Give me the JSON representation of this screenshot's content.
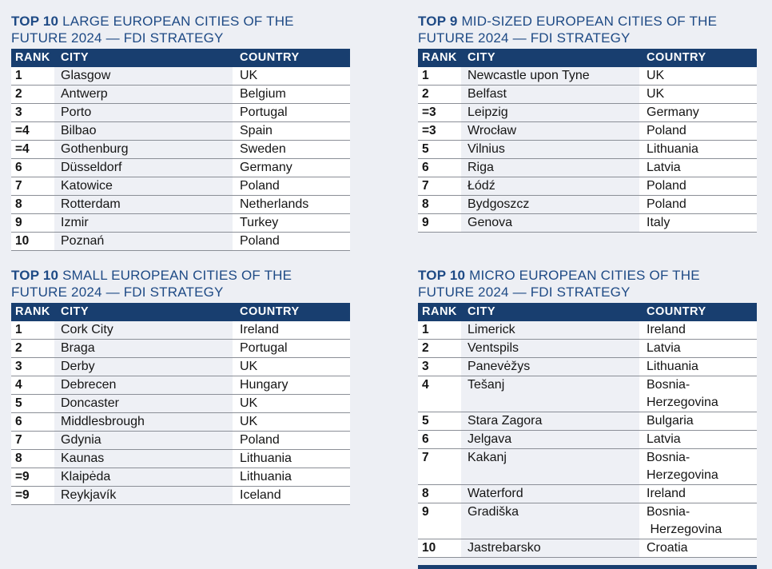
{
  "colors": {
    "page_bg": "#edeff4",
    "navy": "#183e6f",
    "title_blue": "#1e4a85",
    "row_border": "#8b8f97",
    "cell_bg": "#ffffff",
    "city_col_bg": "#eef0f5",
    "body_text": "#151515",
    "header_text": "#ffffff"
  },
  "tables": [
    {
      "id": "large-cities",
      "title_bold": "TOP 10",
      "title_rest": " LARGE EUROPEAN CITIES OF THE FUTURE 2024 — FDI STRATEGY",
      "columns": {
        "rank": "RANK",
        "city": "CITY",
        "country": "COUNTRY"
      },
      "rows": [
        {
          "rank": "1",
          "city": "Glasgow",
          "country": "UK"
        },
        {
          "rank": "2",
          "city": "Antwerp",
          "country": "Belgium"
        },
        {
          "rank": "3",
          "city": "Porto",
          "country": "Portugal"
        },
        {
          "rank": "=4",
          "city": "Bilbao",
          "country": "Spain"
        },
        {
          "rank": "=4",
          "city": "Gothenburg",
          "country": "Sweden"
        },
        {
          "rank": "6",
          "city": "Düsseldorf",
          "country": "Germany"
        },
        {
          "rank": "7",
          "city": "Katowice",
          "country": "Poland"
        },
        {
          "rank": "8",
          "city": "Rotterdam",
          "country": "Netherlands"
        },
        {
          "rank": "9",
          "city": "Izmir",
          "country": "Turkey"
        },
        {
          "rank": "10",
          "city": "Poznań",
          "country": "Poland"
        }
      ]
    },
    {
      "id": "mid-sized-cities",
      "title_bold": "TOP 9",
      "title_rest": " MID-SIZED EUROPEAN CITIES OF THE FUTURE 2024 — FDI STRATEGY",
      "columns": {
        "rank": "RANK",
        "city": "CITY",
        "country": "COUNTRY"
      },
      "rows": [
        {
          "rank": "1",
          "city": "Newcastle upon Tyne",
          "country": "UK"
        },
        {
          "rank": "2",
          "city": "Belfast",
          "country": "UK"
        },
        {
          "rank": "=3",
          "city": "Leipzig",
          "country": "Germany"
        },
        {
          "rank": "=3",
          "city": "Wrocław",
          "country": "Poland"
        },
        {
          "rank": "5",
          "city": "Vilnius",
          "country": "Lithuania"
        },
        {
          "rank": "6",
          "city": "Riga",
          "country": "Latvia"
        },
        {
          "rank": "7",
          "city": "Łódź",
          "country": "Poland"
        },
        {
          "rank": "8",
          "city": "Bydgoszcz",
          "country": "Poland"
        },
        {
          "rank": "9",
          "city": "Genova",
          "country": "Italy"
        }
      ]
    },
    {
      "id": "small-cities",
      "title_bold": "TOP 10",
      "title_rest": " SMALL EUROPEAN CITIES OF THE FUTURE 2024 — FDI STRATEGY",
      "columns": {
        "rank": "RANK",
        "city": "CITY",
        "country": "COUNTRY"
      },
      "rows": [
        {
          "rank": "1",
          "city": "Cork City",
          "country": "Ireland"
        },
        {
          "rank": "2",
          "city": "Braga",
          "country": "Portugal"
        },
        {
          "rank": "3",
          "city": "Derby",
          "country": "UK"
        },
        {
          "rank": "4",
          "city": "Debrecen",
          "country": "Hungary"
        },
        {
          "rank": "5",
          "city": "Doncaster",
          "country": "UK"
        },
        {
          "rank": "6",
          "city": "Middlesbrough",
          "country": "UK"
        },
        {
          "rank": "7",
          "city": "Gdynia",
          "country": "Poland"
        },
        {
          "rank": "8",
          "city": "Kaunas",
          "country": "Lithuania"
        },
        {
          "rank": "=9",
          "city": "Klaipėda",
          "country": "Lithuania"
        },
        {
          "rank": "=9",
          "city": "Reykjavík",
          "country": "Iceland"
        }
      ]
    },
    {
      "id": "micro-cities",
      "title_bold": "TOP 10",
      "title_rest": " MICRO EUROPEAN CITIES OF THE FUTURE 2024 — FDI STRATEGY",
      "columns": {
        "rank": "RANK",
        "city": "CITY",
        "country": "COUNTRY"
      },
      "rows": [
        {
          "rank": "1",
          "city": "Limerick",
          "country": "Ireland"
        },
        {
          "rank": "2",
          "city": "Ventspils",
          "country": "Latvia"
        },
        {
          "rank": "3",
          "city": "Panevėžys",
          "country": "Lithuania"
        },
        {
          "rank": "4",
          "city": "Tešanj",
          "country": "Bosnia-\nHerzegovina"
        },
        {
          "rank": "5",
          "city": "Stara Zagora",
          "country": "Bulgaria"
        },
        {
          "rank": "6",
          "city": "Jelgava",
          "country": "Latvia"
        },
        {
          "rank": "7",
          "city": "Kakanj",
          "country": "Bosnia-\nHerzegovina"
        },
        {
          "rank": "8",
          "city": "Waterford",
          "country": "Ireland"
        },
        {
          "rank": "9",
          "city": "Gradiška",
          "country": "Bosnia-\n Herzegovina"
        },
        {
          "rank": "10",
          "city": "Jastrebarsko",
          "country": "Croatia"
        }
      ]
    }
  ]
}
